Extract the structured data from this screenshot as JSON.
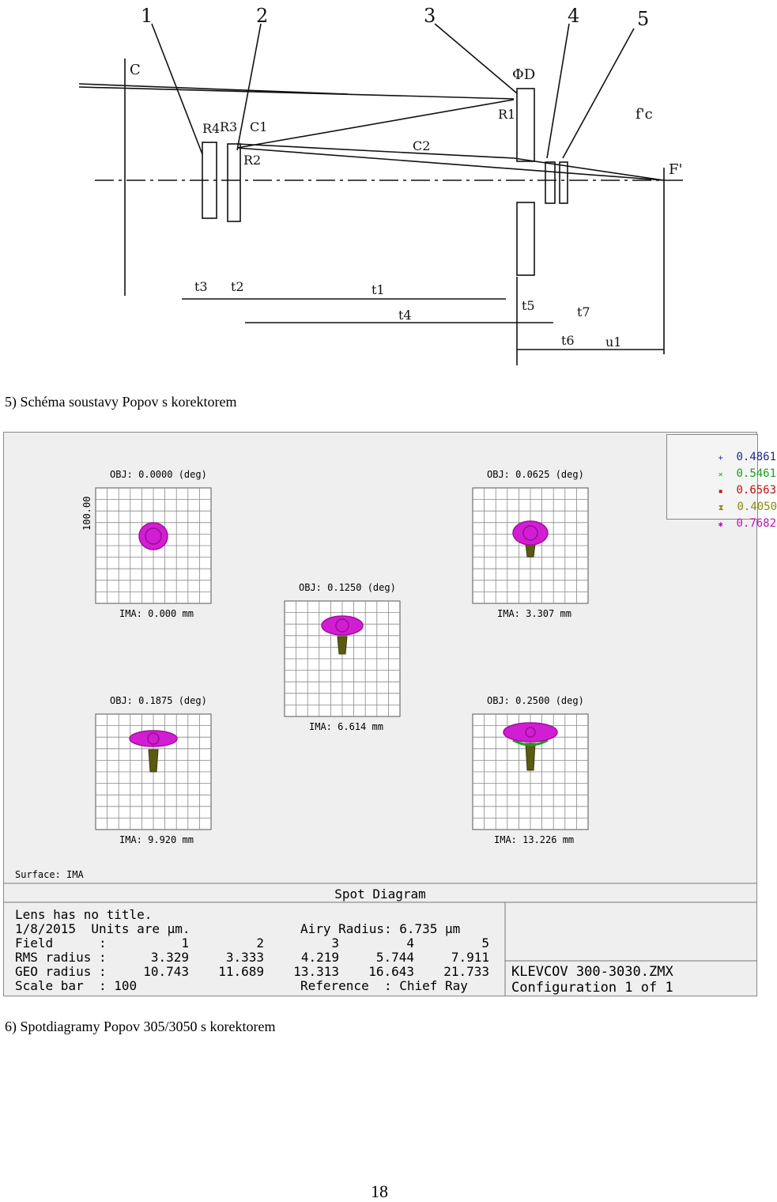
{
  "schematic": {
    "labels": [
      "1",
      "2",
      "3",
      "4",
      "5",
      "C",
      "ΦD",
      "R1",
      "R4",
      "R3",
      "C1",
      "R2",
      "C2",
      "f'c",
      "F'",
      "t3",
      "t2",
      "t1",
      "t4",
      "t5",
      "t7",
      "t6",
      "u1"
    ]
  },
  "caption1": "5) Schéma soustavy Popov s korektorem",
  "caption2": "6) Spotdiagramy Popov 305/3050 s korektorem",
  "page_number": "18",
  "spot": {
    "legend": [
      {
        "symbol": "+",
        "value": "0.4861",
        "color": "#1a2a8a"
      },
      {
        "symbol": "×",
        "value": "0.5461",
        "color": "#1aa01a"
      },
      {
        "symbol": "▪",
        "value": "0.6563",
        "color": "#c01010"
      },
      {
        "symbol": "⧗",
        "value": "0.4050",
        "color": "#8a8a10"
      },
      {
        "symbol": "✱",
        "value": "0.7682",
        "color": "#c010c0"
      }
    ],
    "cells": [
      {
        "obj": "OBJ: 0.0000 (deg)",
        "ima": "IMA: 0.000 mm"
      },
      {
        "obj": "OBJ: 0.0625 (deg)",
        "ima": "IMA: 3.307 mm"
      },
      {
        "obj": "OBJ: 0.1250 (deg)",
        "ima": "IMA: 6.614 mm"
      },
      {
        "obj": "OBJ: 0.1875 (deg)",
        "ima": "IMA: 9.920 mm"
      },
      {
        "obj": "OBJ: 0.2500 (deg)",
        "ima": "IMA: 13.226 mm"
      }
    ],
    "scale_label": "100.00",
    "surface": "Surface: IMA",
    "title": "Spot Diagram",
    "info": {
      "line1": "Lens has no title.",
      "line2": "1/8/2015  Units are µm.",
      "airy": "Airy Radius: 6.735 µm",
      "field_label": "Field      :",
      "fields": [
        "1",
        "2",
        "3",
        "4",
        "5"
      ],
      "rms_label": "RMS radius :",
      "rms": [
        "3.329",
        "3.333",
        "4.219",
        "5.744",
        "7.911"
      ],
      "geo_label": "GEO radius :",
      "geo": [
        "10.743",
        "11.689",
        "13.313",
        "16.643",
        "21.733"
      ],
      "scale_bar": "Scale bar  : 100",
      "reference": "Reference  : Chief Ray",
      "file": "KLEVCOV 300-3030.ZMX",
      "config": "Configuration 1 of 1"
    }
  }
}
